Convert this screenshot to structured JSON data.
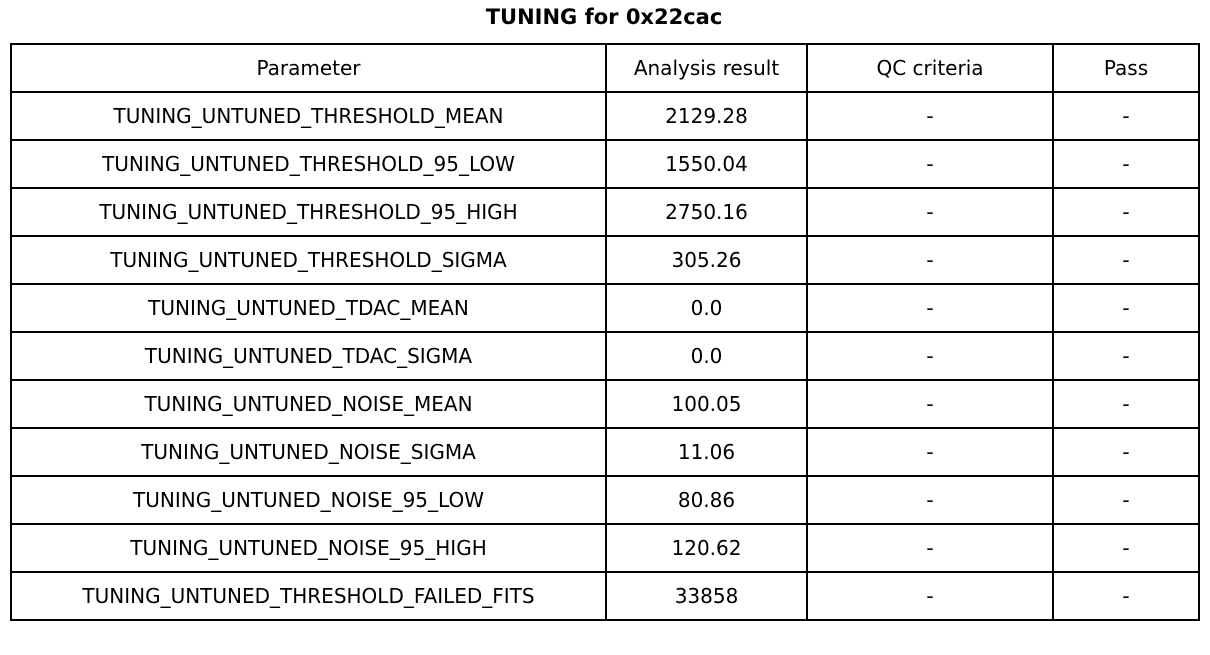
{
  "title": "TUNING for 0x22cac",
  "table": {
    "columns": [
      "Parameter",
      "Analysis result",
      "QC criteria",
      "Pass"
    ],
    "rows": [
      {
        "parameter": "TUNING_UNTUNED_THRESHOLD_MEAN",
        "analysis_result": "2129.28",
        "qc_criteria": "-",
        "pass": "-"
      },
      {
        "parameter": "TUNING_UNTUNED_THRESHOLD_95_LOW",
        "analysis_result": "1550.04",
        "qc_criteria": "-",
        "pass": "-"
      },
      {
        "parameter": "TUNING_UNTUNED_THRESHOLD_95_HIGH",
        "analysis_result": "2750.16",
        "qc_criteria": "-",
        "pass": "-"
      },
      {
        "parameter": "TUNING_UNTUNED_THRESHOLD_SIGMA",
        "analysis_result": "305.26",
        "qc_criteria": "-",
        "pass": "-"
      },
      {
        "parameter": "TUNING_UNTUNED_TDAC_MEAN",
        "analysis_result": "0.0",
        "qc_criteria": "-",
        "pass": "-"
      },
      {
        "parameter": "TUNING_UNTUNED_TDAC_SIGMA",
        "analysis_result": "0.0",
        "qc_criteria": "-",
        "pass": "-"
      },
      {
        "parameter": "TUNING_UNTUNED_NOISE_MEAN",
        "analysis_result": "100.05",
        "qc_criteria": "-",
        "pass": "-"
      },
      {
        "parameter": "TUNING_UNTUNED_NOISE_SIGMA",
        "analysis_result": "11.06",
        "qc_criteria": "-",
        "pass": "-"
      },
      {
        "parameter": "TUNING_UNTUNED_NOISE_95_LOW",
        "analysis_result": "80.86",
        "qc_criteria": "-",
        "pass": "-"
      },
      {
        "parameter": "TUNING_UNTUNED_NOISE_95_HIGH",
        "analysis_result": "120.62",
        "qc_criteria": "-",
        "pass": "-"
      },
      {
        "parameter": "TUNING_UNTUNED_THRESHOLD_FAILED_FITS",
        "analysis_result": "33858",
        "qc_criteria": "-",
        "pass": "-"
      }
    ]
  },
  "colors": {
    "background": "#ffffff",
    "border": "#000000",
    "text": "#000000"
  },
  "chart_data": {
    "type": "table",
    "title": "TUNING for 0x22cac",
    "columns": [
      "Parameter",
      "Analysis result",
      "QC criteria",
      "Pass"
    ],
    "rows": [
      [
        "TUNING_UNTUNED_THRESHOLD_MEAN",
        "2129.28",
        "-",
        "-"
      ],
      [
        "TUNING_UNTUNED_THRESHOLD_95_LOW",
        "1550.04",
        "-",
        "-"
      ],
      [
        "TUNING_UNTUNED_THRESHOLD_95_HIGH",
        "2750.16",
        "-",
        "-"
      ],
      [
        "TUNING_UNTUNED_THRESHOLD_SIGMA",
        "305.26",
        "-",
        "-"
      ],
      [
        "TUNING_UNTUNED_TDAC_MEAN",
        "0.0",
        "-",
        "-"
      ],
      [
        "TUNING_UNTUNED_TDAC_SIGMA",
        "0.0",
        "-",
        "-"
      ],
      [
        "TUNING_UNTUNED_NOISE_MEAN",
        "100.05",
        "-",
        "-"
      ],
      [
        "TUNING_UNTUNED_NOISE_SIGMA",
        "11.06",
        "-",
        "-"
      ],
      [
        "TUNING_UNTUNED_NOISE_95_LOW",
        "80.86",
        "-",
        "-"
      ],
      [
        "TUNING_UNTUNED_NOISE_95_HIGH",
        "120.62",
        "-",
        "-"
      ],
      [
        "TUNING_UNTUNED_THRESHOLD_FAILED_FITS",
        "33858",
        "-",
        "-"
      ]
    ],
    "layout": {
      "title_position": "top-center",
      "cell_text_align": "center",
      "grid": true
    }
  }
}
